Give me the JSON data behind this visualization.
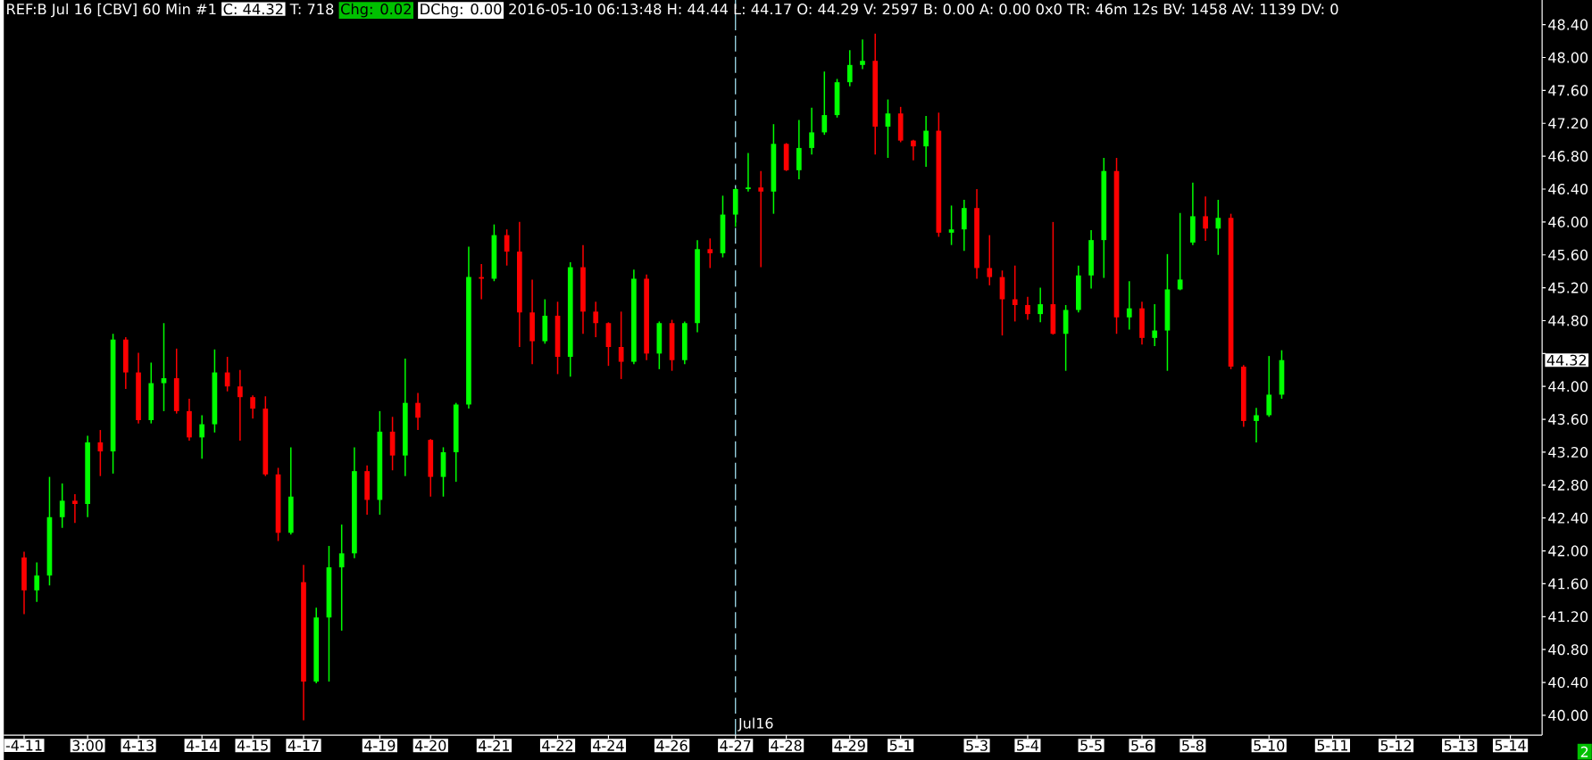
{
  "chart_data": {
    "type": "candlestick",
    "title": "REF:B Jul 16 [CBV] 60 Min #1",
    "annotations": [
      "C: 44.32",
      "T: 718",
      "Chg: 0.02",
      "DChg: 0.00",
      "2016-05-10 06:13:48 H: 44.44 L: 44.17 O: 44.29 V: 2597 B: 0.00 A: 0.00 0x0 TR: 46m 12s BV: 1458 AV: 1139 DV: 0",
      "44.32",
      "2"
    ],
    "categories": [
      "-4-11",
      null,
      null,
      null,
      null,
      "3:00",
      null,
      null,
      null,
      "4-13",
      null,
      null,
      null,
      null,
      "4-14",
      null,
      null,
      null,
      "4-15",
      null,
      null,
      null,
      "4-17",
      null,
      null,
      null,
      null,
      null,
      "4-19",
      null,
      null,
      null,
      "4-20",
      null,
      null,
      null,
      null,
      "4-21",
      null,
      null,
      null,
      null,
      "4-22",
      null,
      null,
      null,
      "4-24",
      null,
      null,
      null,
      null,
      "4-26",
      null,
      null,
      null,
      null,
      "4-27",
      null,
      null,
      null,
      "4-28",
      null,
      null,
      null,
      null,
      "4-29",
      null,
      null,
      null,
      "5-1",
      null,
      null,
      null,
      null,
      null,
      "5-3",
      null,
      null,
      null,
      "5-4",
      null,
      null,
      null,
      null,
      "5-5",
      null,
      null,
      null,
      "5-6",
      null,
      null,
      null,
      "5-8",
      null,
      null,
      null,
      null,
      null,
      "5-10",
      null,
      null,
      null,
      null,
      "5-11",
      null,
      null,
      null,
      null,
      "5-12",
      null,
      null,
      null,
      null,
      "5-13",
      null,
      null,
      null,
      "5-14",
      null,
      null
    ],
    "ohlc": [
      [
        41.92,
        41.99,
        41.23,
        41.52
      ],
      [
        41.52,
        41.86,
        41.38,
        41.7
      ],
      [
        41.7,
        42.9,
        41.58,
        42.41
      ],
      [
        42.41,
        42.82,
        42.28,
        42.61
      ],
      [
        42.61,
        42.69,
        42.34,
        42.57
      ],
      [
        42.57,
        43.4,
        42.41,
        43.32
      ],
      [
        43.32,
        43.47,
        42.91,
        43.21
      ],
      [
        43.21,
        44.64,
        42.94,
        44.57
      ],
      [
        44.57,
        44.6,
        43.97,
        44.17
      ],
      [
        44.17,
        44.41,
        43.55,
        43.59
      ],
      [
        43.59,
        44.29,
        43.55,
        44.04
      ],
      [
        44.04,
        44.77,
        43.7,
        44.1
      ],
      [
        44.1,
        44.46,
        43.67,
        43.7
      ],
      [
        43.7,
        43.85,
        43.34,
        43.38
      ],
      [
        43.38,
        43.65,
        43.12,
        43.54
      ],
      [
        43.54,
        44.45,
        43.44,
        44.17
      ],
      [
        44.17,
        44.36,
        43.94,
        44.0
      ],
      [
        44.0,
        44.2,
        43.34,
        43.87
      ],
      [
        43.87,
        43.89,
        43.61,
        43.73
      ],
      [
        43.73,
        43.88,
        42.91,
        42.93
      ],
      [
        42.93,
        43.01,
        42.12,
        42.22
      ],
      [
        42.22,
        43.26,
        42.2,
        42.66
      ],
      [
        41.62,
        41.83,
        39.94,
        40.41
      ],
      [
        40.41,
        41.31,
        40.39,
        41.19
      ],
      [
        41.19,
        42.06,
        40.41,
        41.8
      ],
      [
        41.8,
        42.32,
        41.03,
        41.97
      ],
      [
        41.97,
        43.26,
        41.91,
        42.97
      ],
      [
        42.97,
        43.04,
        42.44,
        42.62
      ],
      [
        42.62,
        43.7,
        42.44,
        43.45
      ],
      [
        43.45,
        43.63,
        42.98,
        43.16
      ],
      [
        43.16,
        44.34,
        42.91,
        43.8
      ],
      [
        43.8,
        43.92,
        43.47,
        43.62
      ],
      [
        43.35,
        43.36,
        42.66,
        42.9
      ],
      [
        42.9,
        43.26,
        42.66,
        43.2
      ],
      [
        43.2,
        43.8,
        42.84,
        43.78
      ],
      [
        43.78,
        45.7,
        43.73,
        45.33
      ],
      [
        45.33,
        45.49,
        45.06,
        45.31
      ],
      [
        45.31,
        45.97,
        45.28,
        45.84
      ],
      [
        45.84,
        45.91,
        45.47,
        45.64
      ],
      [
        45.64,
        46.0,
        44.48,
        44.9
      ],
      [
        44.9,
        45.3,
        44.27,
        44.55
      ],
      [
        44.55,
        45.06,
        44.52,
        44.86
      ],
      [
        44.86,
        45.03,
        44.15,
        44.36
      ],
      [
        44.36,
        45.51,
        44.12,
        45.45
      ],
      [
        45.45,
        45.72,
        44.64,
        44.91
      ],
      [
        44.91,
        45.03,
        44.6,
        44.77
      ],
      [
        44.77,
        44.78,
        44.25,
        44.48
      ],
      [
        44.48,
        44.91,
        44.09,
        44.3
      ],
      [
        44.3,
        45.42,
        44.27,
        45.31
      ],
      [
        45.31,
        45.36,
        44.32,
        44.4
      ],
      [
        44.4,
        44.79,
        44.21,
        44.77
      ],
      [
        44.77,
        44.81,
        44.19,
        44.32
      ],
      [
        44.32,
        44.79,
        44.27,
        44.77
      ],
      [
        44.77,
        45.78,
        44.66,
        45.67
      ],
      [
        45.67,
        45.8,
        45.44,
        45.62
      ],
      [
        45.62,
        46.32,
        45.57,
        46.09
      ],
      [
        46.09,
        46.41,
        45.94,
        46.4
      ],
      [
        46.4,
        46.84,
        46.37,
        46.42
      ],
      [
        46.42,
        46.62,
        45.45,
        46.37
      ],
      [
        46.37,
        47.19,
        46.1,
        46.95
      ],
      [
        46.95,
        46.96,
        46.62,
        46.63
      ],
      [
        46.63,
        47.24,
        46.52,
        46.9
      ],
      [
        46.9,
        47.39,
        46.82,
        47.09
      ],
      [
        47.09,
        47.83,
        47.06,
        47.3
      ],
      [
        47.3,
        47.74,
        47.27,
        47.7
      ],
      [
        47.7,
        48.09,
        47.65,
        47.91
      ],
      [
        47.91,
        48.22,
        47.86,
        47.96
      ],
      [
        47.96,
        48.29,
        46.82,
        47.16
      ],
      [
        47.16,
        47.49,
        46.78,
        47.32
      ],
      [
        47.32,
        47.4,
        46.97,
        46.99
      ],
      [
        46.99,
        47.0,
        46.75,
        46.92
      ],
      [
        46.92,
        47.29,
        46.67,
        47.11
      ],
      [
        47.11,
        47.33,
        45.82,
        45.87
      ],
      [
        45.87,
        46.2,
        45.72,
        45.91
      ],
      [
        45.91,
        46.27,
        45.65,
        46.17
      ],
      [
        46.17,
        46.4,
        45.31,
        45.44
      ],
      [
        45.44,
        45.84,
        45.23,
        45.33
      ],
      [
        45.33,
        45.41,
        44.62,
        45.06
      ],
      [
        45.06,
        45.47,
        44.79,
        44.99
      ],
      [
        44.99,
        45.09,
        44.81,
        44.88
      ],
      [
        44.88,
        45.2,
        44.78,
        45.0
      ],
      [
        45.0,
        46.0,
        44.63,
        44.64
      ],
      [
        44.64,
        44.99,
        44.19,
        44.93
      ],
      [
        44.93,
        45.47,
        44.9,
        45.35
      ],
      [
        45.35,
        45.9,
        45.19,
        45.78
      ],
      [
        45.78,
        46.78,
        45.32,
        46.62
      ],
      [
        46.62,
        46.78,
        44.64,
        44.84
      ],
      [
        44.84,
        45.28,
        44.69,
        44.95
      ],
      [
        44.95,
        45.03,
        44.51,
        44.59
      ],
      [
        44.59,
        45.0,
        44.49,
        44.68
      ],
      [
        44.68,
        45.61,
        44.19,
        45.18
      ],
      [
        45.18,
        46.11,
        45.17,
        45.3
      ],
      [
        45.75,
        46.48,
        45.72,
        46.07
      ],
      [
        46.07,
        46.31,
        45.77,
        45.92
      ],
      [
        45.92,
        46.27,
        45.6,
        46.05
      ],
      [
        46.05,
        46.1,
        44.21,
        44.24
      ],
      [
        44.24,
        44.26,
        43.51,
        43.58
      ],
      [
        43.58,
        43.74,
        43.32,
        43.65
      ],
      [
        43.65,
        44.37,
        43.63,
        43.9
      ],
      [
        43.9,
        44.44,
        43.85,
        44.32
      ],
      null,
      null,
      null,
      null,
      null,
      null,
      null,
      null,
      null,
      null,
      null,
      null,
      null,
      null,
      null,
      null,
      null,
      null,
      null,
      null
    ],
    "colors": [
      "#ff0000",
      "#00ff00",
      "#00ff00",
      "#00ff00",
      "#ff0000",
      "#00ff00",
      "#ff0000",
      "#00ff00",
      "#ff0000",
      "#ff0000",
      "#00ff00",
      "#00ff00",
      "#ff0000",
      "#ff0000",
      "#00ff00",
      "#00ff00",
      "#ff0000",
      "#ff0000",
      "#ff0000",
      "#ff0000",
      "#ff0000",
      "#00ff00",
      "#ff0000",
      "#00ff00",
      "#00ff00",
      "#00ff00",
      "#00ff00",
      "#ff0000",
      "#00ff00",
      "#ff0000",
      "#00ff00",
      "#ff0000",
      "#ff0000",
      "#00ff00",
      "#00ff00",
      "#00ff00",
      "#ff0000",
      "#00ff00",
      "#ff0000",
      "#ff0000",
      "#ff0000",
      "#00ff00",
      "#ff0000",
      "#00ff00",
      "#ff0000",
      "#ff0000",
      "#ff0000",
      "#ff0000",
      "#00ff00",
      "#ff0000",
      "#00ff00",
      "#ff0000",
      "#00ff00",
      "#00ff00",
      "#ff0000",
      "#00ff00",
      "#00ff00",
      "#00ff00",
      "#ff0000",
      "#00ff00",
      "#ff0000",
      "#00ff00",
      "#00ff00",
      "#00ff00",
      "#00ff00",
      "#00ff00",
      "#00ff00",
      "#ff0000",
      "#00ff00",
      "#ff0000",
      "#ff0000",
      "#00ff00",
      "#ff0000",
      "#00ff00",
      "#00ff00",
      "#ff0000",
      "#ff0000",
      "#ff0000",
      "#ff0000",
      "#ff0000",
      "#00ff00",
      "#ff0000",
      "#00ff00",
      "#00ff00",
      "#00ff00",
      "#00ff00",
      "#ff0000",
      "#00ff00",
      "#ff0000",
      "#00ff00",
      "#00ff00",
      "#00ff00",
      "#00ff00",
      "#ff0000",
      "#00ff00",
      "#ff0000",
      "#ff0000",
      "#00ff00",
      "#00ff00",
      "#00ff00",
      null,
      null,
      null,
      null,
      null,
      null,
      null,
      null,
      null,
      null,
      null,
      null,
      null,
      null,
      null,
      null,
      null,
      null,
      null,
      null
    ],
    "ylim": [
      39.76,
      48.7
    ],
    "yticks": [
      {
        "value": 40,
        "label": "40.00"
      },
      {
        "value": 40.4,
        "label": "40.40"
      },
      {
        "value": 40.8,
        "label": "40.80"
      },
      {
        "value": 41.2,
        "label": "41.20"
      },
      {
        "value": 41.6,
        "label": "41.60"
      },
      {
        "value": 42,
        "label": "42.00"
      },
      {
        "value": 42.4,
        "label": "42.40"
      },
      {
        "value": 42.8,
        "label": "42.80"
      },
      {
        "value": 43.2,
        "label": "43.20"
      },
      {
        "value": 43.6,
        "label": "43.60"
      },
      {
        "value": 44,
        "label": "44.00"
      },
      {
        "value": 44.4,
        "label": null
      },
      {
        "value": 44.8,
        "label": "44.80"
      },
      {
        "value": 45.2,
        "label": "45.20"
      },
      {
        "value": 45.6,
        "label": "45.60"
      },
      {
        "value": 46,
        "label": "46.00"
      },
      {
        "value": 46.4,
        "label": "46.40"
      },
      {
        "value": 46.8,
        "label": "46.80"
      },
      {
        "value": 47.2,
        "label": "47.20"
      },
      {
        "value": 47.6,
        "label": "47.60"
      },
      {
        "value": 48,
        "label": "48.00"
      },
      {
        "value": 48.4,
        "label": "48.40"
      }
    ],
    "ref_lines": [
      {
        "axis": "x",
        "value": "4-27",
        "label": "Jul16",
        "color": "#9fdcec",
        "line_style": "dashed"
      }
    ]
  }
}
